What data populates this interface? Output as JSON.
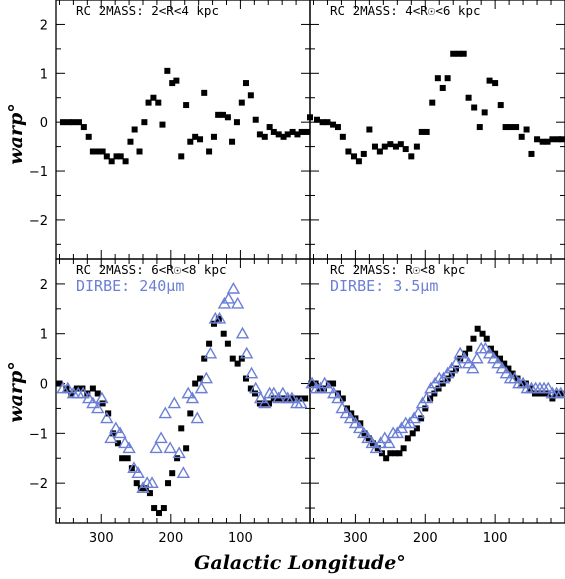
{
  "axes": {
    "ylabel": "warp°",
    "xlabel": "Galactic Longitude°",
    "xlim": [
      365,
      0
    ],
    "ylim": [
      -2.8,
      2.5
    ],
    "xticks_major": [
      300,
      200,
      100
    ],
    "yticks_major": [
      2,
      1,
      0,
      -1,
      -2
    ]
  },
  "colors": {
    "rc": "#000000",
    "dirbe": "#6b7fd6"
  },
  "chart_data": [
    {
      "type": "scatter",
      "title": "RC 2MASS: 2<R<4 kpc",
      "series": [
        {
          "name": "RC 2MASS",
          "marker": "square",
          "x": [
            355,
            347,
            340,
            332,
            325,
            318,
            312,
            305,
            298,
            292,
            285,
            278,
            272,
            265,
            258,
            252,
            245,
            238,
            232,
            225,
            218,
            212,
            205,
            198,
            192,
            185,
            178,
            172,
            165,
            158,
            152,
            145,
            138,
            132,
            125,
            118,
            112,
            105,
            98,
            92,
            85,
            78,
            72,
            65,
            58,
            52,
            45,
            38,
            32,
            25,
            18,
            12,
            5
          ],
          "y": [
            0,
            0,
            0,
            0,
            -0.1,
            -0.3,
            -0.6,
            -0.6,
            -0.6,
            -0.7,
            -0.8,
            -0.7,
            -0.7,
            -0.8,
            -0.4,
            -0.15,
            -0.6,
            0,
            0.4,
            0.5,
            0.4,
            -0.05,
            1.05,
            0.8,
            0.85,
            -0.7,
            0.35,
            -0.4,
            -0.3,
            -0.35,
            0.6,
            -0.6,
            -0.3,
            0.15,
            0.15,
            0.1,
            -0.4,
            0,
            0.4,
            0.8,
            0.55,
            0.05,
            -0.25,
            -0.3,
            -0.1,
            -0.2,
            -0.25,
            -0.3,
            -0.25,
            -0.2,
            -0.25,
            -0.2,
            -0.2
          ]
        }
      ]
    },
    {
      "type": "scatter",
      "title": "RC 2MASS: 4<R☉<6 kpc",
      "series": [
        {
          "name": "RC 2MASS",
          "marker": "square",
          "x": [
            365,
            355,
            347,
            340,
            332,
            325,
            318,
            310,
            302,
            295,
            288,
            280,
            272,
            265,
            258,
            250,
            242,
            235,
            228,
            220,
            212,
            205,
            198,
            190,
            182,
            175,
            168,
            160,
            152,
            145,
            138,
            130,
            122,
            115,
            108,
            100,
            92,
            85,
            78,
            70,
            62,
            55,
            48,
            40,
            32,
            25,
            18,
            10,
            5
          ],
          "y": [
            0.1,
            0.05,
            0,
            0,
            -0.05,
            -0.1,
            -0.3,
            -0.6,
            -0.7,
            -0.8,
            -0.65,
            -0.15,
            -0.5,
            -0.6,
            -0.5,
            -0.45,
            -0.5,
            -0.45,
            -0.55,
            -0.7,
            -0.5,
            -0.2,
            -0.2,
            0.4,
            0.9,
            0.7,
            0.9,
            1.4,
            1.4,
            1.4,
            0.5,
            0.3,
            -0.1,
            0.2,
            0.85,
            0.8,
            0.35,
            -0.1,
            -0.1,
            -0.1,
            -0.3,
            -0.15,
            -0.65,
            -0.35,
            -0.4,
            -0.4,
            -0.35,
            -0.35,
            -0.35
          ]
        }
      ]
    },
    {
      "type": "scatter",
      "title": "RC 2MASS: 6<R☉<8 kpc",
      "subtitle": "DIRBE: 240μm",
      "series": [
        {
          "name": "RC 2MASS",
          "marker": "square",
          "x": [
            360,
            350,
            343,
            335,
            327,
            320,
            312,
            305,
            298,
            290,
            283,
            276,
            270,
            262,
            256,
            249,
            243,
            236,
            230,
            224,
            217,
            210,
            204,
            198,
            191,
            185,
            178,
            172,
            165,
            158,
            152,
            145,
            138,
            131,
            124,
            118,
            111,
            104,
            98,
            92,
            85,
            79,
            72,
            66,
            59,
            52,
            46,
            39,
            33,
            26,
            20,
            13,
            7
          ],
          "y": [
            0,
            -0.1,
            -0.2,
            -0.1,
            -0.1,
            -0.2,
            -0.1,
            -0.2,
            -0.4,
            -0.6,
            -1.0,
            -1.2,
            -1.5,
            -1.5,
            -1.7,
            -2.0,
            -2.1,
            -2.1,
            -2.2,
            -2.5,
            -2.6,
            -2.5,
            -2.0,
            -1.8,
            -1.5,
            -0.9,
            -1.3,
            -0.6,
            0,
            0.1,
            0.5,
            0.8,
            1.2,
            1.3,
            1.0,
            0.8,
            0.5,
            0.4,
            0.5,
            0.1,
            -0.1,
            -0.2,
            -0.4,
            -0.4,
            -0.4,
            -0.3,
            -0.3,
            -0.3,
            -0.3,
            -0.3,
            -0.3,
            -0.3,
            -0.3
          ]
        },
        {
          "name": "DIRBE: 240μm",
          "marker": "triangle",
          "x": [
            355,
            348,
            340,
            333,
            326,
            318,
            312,
            305,
            299,
            292,
            286,
            279,
            273,
            266,
            260,
            253,
            247,
            240,
            234,
            227,
            221,
            214,
            208,
            201,
            195,
            188,
            182,
            175,
            169,
            162,
            156,
            149,
            143,
            136,
            130,
            123,
            117,
            110,
            104,
            97,
            91,
            84,
            78,
            71,
            65,
            58,
            52,
            45,
            39,
            32,
            26,
            19,
            13
          ],
          "y": [
            -0.1,
            -0.1,
            -0.2,
            -0.2,
            -0.2,
            -0.3,
            -0.4,
            -0.5,
            -0.3,
            -0.7,
            -1.1,
            -0.9,
            -1.0,
            -1.2,
            -1.3,
            -1.7,
            -1.8,
            -2.1,
            -2.0,
            -2.0,
            -1.3,
            -1.1,
            -0.6,
            -1.3,
            -0.4,
            -1.4,
            -1.8,
            -0.2,
            -0.3,
            -0.7,
            -0.1,
            0.1,
            0.6,
            1.3,
            1.3,
            1.6,
            1.7,
            1.9,
            1.6,
            1.0,
            0.6,
            0.2,
            -0.1,
            -0.3,
            -0.4,
            -0.2,
            -0.2,
            -0.3,
            -0.2,
            -0.3,
            -0.3,
            -0.4,
            -0.4
          ]
        }
      ]
    },
    {
      "type": "scatter",
      "title": "RC 2MASS: R☉<8 kpc",
      "subtitle": "DIRBE: 3.5μm",
      "series": [
        {
          "name": "RC 2MASS",
          "marker": "square",
          "x": [
            363,
            357,
            351,
            345,
            338,
            332,
            325,
            318,
            312,
            306,
            300,
            293,
            287,
            281,
            275,
            268,
            262,
            256,
            250,
            243,
            237,
            231,
            225,
            218,
            212,
            206,
            200,
            193,
            187,
            181,
            175,
            168,
            162,
            156,
            150,
            143,
            137,
            131,
            125,
            118,
            112,
            106,
            100,
            93,
            87,
            81,
            75,
            68,
            62,
            56,
            50,
            43,
            37,
            31,
            25,
            18,
            12,
            6
          ],
          "y": [
            0,
            0,
            -0.1,
            -0.1,
            0,
            0,
            -0.2,
            -0.3,
            -0.5,
            -0.6,
            -0.7,
            -0.8,
            -1.0,
            -1.1,
            -1.2,
            -1.3,
            -1.4,
            -1.5,
            -1.4,
            -1.4,
            -1.4,
            -1.3,
            -1.1,
            -1.0,
            -0.9,
            -0.7,
            -0.5,
            -0.3,
            -0.2,
            -0.1,
            0,
            0.1,
            0.2,
            0.3,
            0.5,
            0.6,
            0.7,
            0.9,
            1.1,
            1.0,
            0.9,
            0.7,
            0.6,
            0.5,
            0.4,
            0.3,
            0.2,
            0.1,
            0,
            0,
            -0.1,
            -0.2,
            -0.2,
            -0.2,
            -0.2,
            -0.3,
            -0.2,
            -0.2
          ]
        },
        {
          "name": "DIRBE: 3.5μm",
          "marker": "triangle",
          "x": [
            362,
            356,
            350,
            344,
            338,
            331,
            325,
            319,
            313,
            307,
            300,
            294,
            288,
            282,
            276,
            270,
            264,
            258,
            252,
            246,
            240,
            234,
            228,
            222,
            216,
            210,
            204,
            198,
            192,
            186,
            180,
            174,
            168,
            162,
            156,
            150,
            144,
            138,
            132,
            126,
            120,
            114,
            108,
            102,
            96,
            90,
            84,
            78,
            72,
            66,
            60,
            54,
            48,
            42,
            36,
            30,
            24,
            18,
            12,
            6
          ],
          "y": [
            0,
            -0.1,
            -0.1,
            0,
            -0.1,
            -0.2,
            -0.3,
            -0.5,
            -0.6,
            -0.7,
            -0.8,
            -0.9,
            -1.0,
            -1.1,
            -1.2,
            -1.3,
            -1.2,
            -1.1,
            -1.2,
            -1.0,
            -1.0,
            -0.9,
            -0.8,
            -0.8,
            -0.7,
            -0.6,
            -0.4,
            -0.3,
            -0.1,
            0,
            0.1,
            0.1,
            0.2,
            0.3,
            0.4,
            0.6,
            0.5,
            0.4,
            0.3,
            0.5,
            0.7,
            0.7,
            0.6,
            0.5,
            0.4,
            0.3,
            0.2,
            0.1,
            0.1,
            0,
            0,
            -0.1,
            -0.1,
            -0.1,
            -0.1,
            -0.1,
            -0.1,
            -0.2,
            -0.2,
            -0.2
          ]
        }
      ]
    }
  ]
}
